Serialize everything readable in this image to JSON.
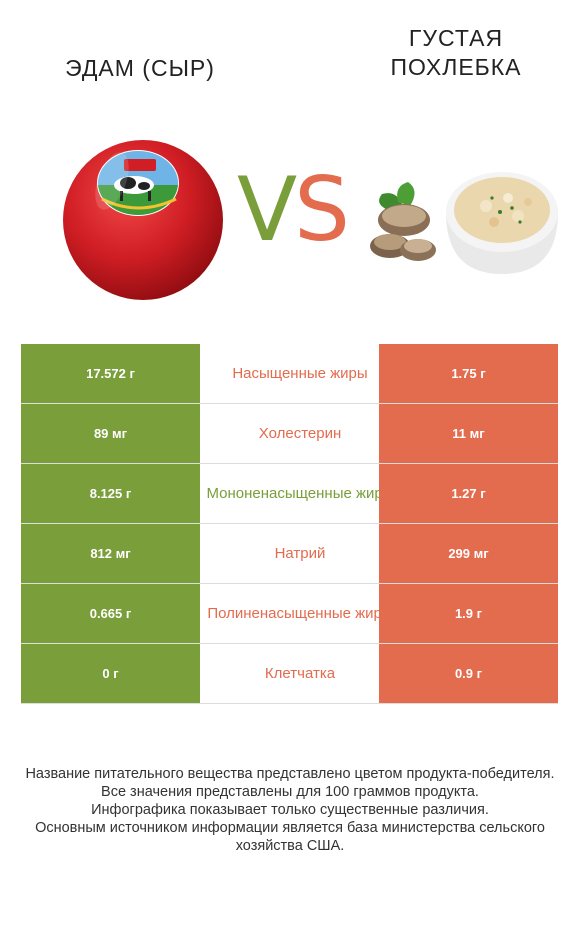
{
  "left_food": {
    "name": "Эдам (сыр)",
    "color": "#7a9e3a",
    "image_icon": "red-wax-cheese-ball-icon"
  },
  "right_food": {
    "name": "Густая похлебка",
    "color": "#e36b4e",
    "image_icon": "clam-chowder-bowl-icon"
  },
  "vs": {
    "v": "V",
    "s": "S"
  },
  "nutrients": [
    {
      "left": "17.572 г",
      "name": "Насыщенные жиры",
      "right": "1.75 г",
      "winner": "right"
    },
    {
      "left": "89 мг",
      "name": "Холестерин",
      "right": "11 мг",
      "winner": "right"
    },
    {
      "left": "8.125 г",
      "name": "Мононенасыщенные жиры",
      "right": "1.27 г",
      "winner": "left"
    },
    {
      "left": "812 мг",
      "name": "Натрий",
      "right": "299 мг",
      "winner": "right"
    },
    {
      "left": "0.665 г",
      "name": "Полиненасыщенные жиры",
      "right": "1.9 г",
      "winner": "right"
    },
    {
      "left": "0 г",
      "name": "Клетчатка",
      "right": "0.9 г",
      "winner": "right"
    }
  ],
  "footer": [
    "Название питательного вещества представлено цветом продукта-победителя.",
    "Все значения представлены для 100 граммов продукта.",
    "Инфографика показывает только существенные различия.",
    "Основным источником информации является база министерства сельского хозяйства США."
  ]
}
